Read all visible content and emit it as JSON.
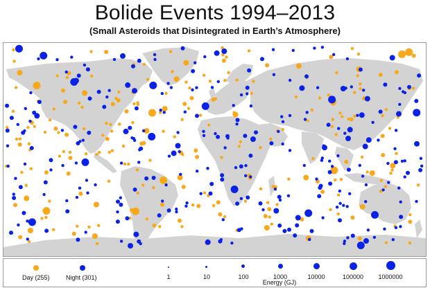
{
  "title": "Bolide Events 1994–2013",
  "subtitle": "(Small Asteroids that Disintegrated in Earth’s Atmosphere)",
  "colors": {
    "day": "#f8a81a",
    "night": "#0a22e6",
    "land": "#d3d3d3",
    "ocean": "#ffffff"
  },
  "legend": {
    "day_label": "Day (255)",
    "night_label": "Night (301)",
    "energy_title": "Energy (GJ)",
    "energy_scale": [
      "1",
      "10",
      "100",
      "1000",
      "10000",
      "100000",
      "1000000"
    ]
  }
}
